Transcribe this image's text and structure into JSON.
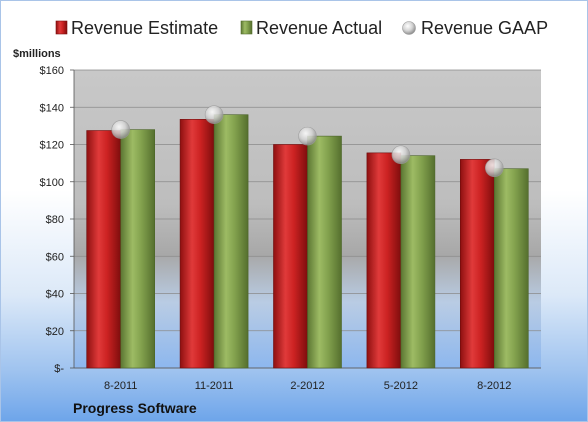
{
  "chart_data": {
    "type": "bar",
    "unit_label": "$millions",
    "footer": "Progress Software",
    "categories": [
      "8-2011",
      "11-2011",
      "2-2012",
      "5-2012",
      "8-2012"
    ],
    "series": [
      {
        "name": "Revenue Estimate",
        "kind": "bar",
        "color": "#cc2222",
        "values": [
          127.5,
          133.5,
          120,
          115.5,
          112
        ]
      },
      {
        "name": "Revenue Actual",
        "kind": "bar",
        "color": "#7f9e4a",
        "values": [
          128,
          136,
          124.5,
          114,
          107
        ]
      },
      {
        "name": "Revenue GAAP",
        "kind": "marker",
        "color": "#c8c8c8",
        "values": [
          128,
          136,
          124.5,
          114.5,
          107.5
        ]
      }
    ],
    "ylim": [
      0,
      160
    ],
    "yticks": [
      {
        "value": 160,
        "label": "$160"
      },
      {
        "value": 140,
        "label": "$140"
      },
      {
        "value": 120,
        "label": "$120"
      },
      {
        "value": 100,
        "label": "$100"
      },
      {
        "value": 80,
        "label": "$80"
      },
      {
        "value": 60,
        "label": "$60"
      },
      {
        "value": 40,
        "label": "$40"
      },
      {
        "value": 20,
        "label": "$20"
      },
      {
        "value": 0,
        "label": "$-"
      }
    ],
    "grid": true,
    "legend_position": "top"
  }
}
